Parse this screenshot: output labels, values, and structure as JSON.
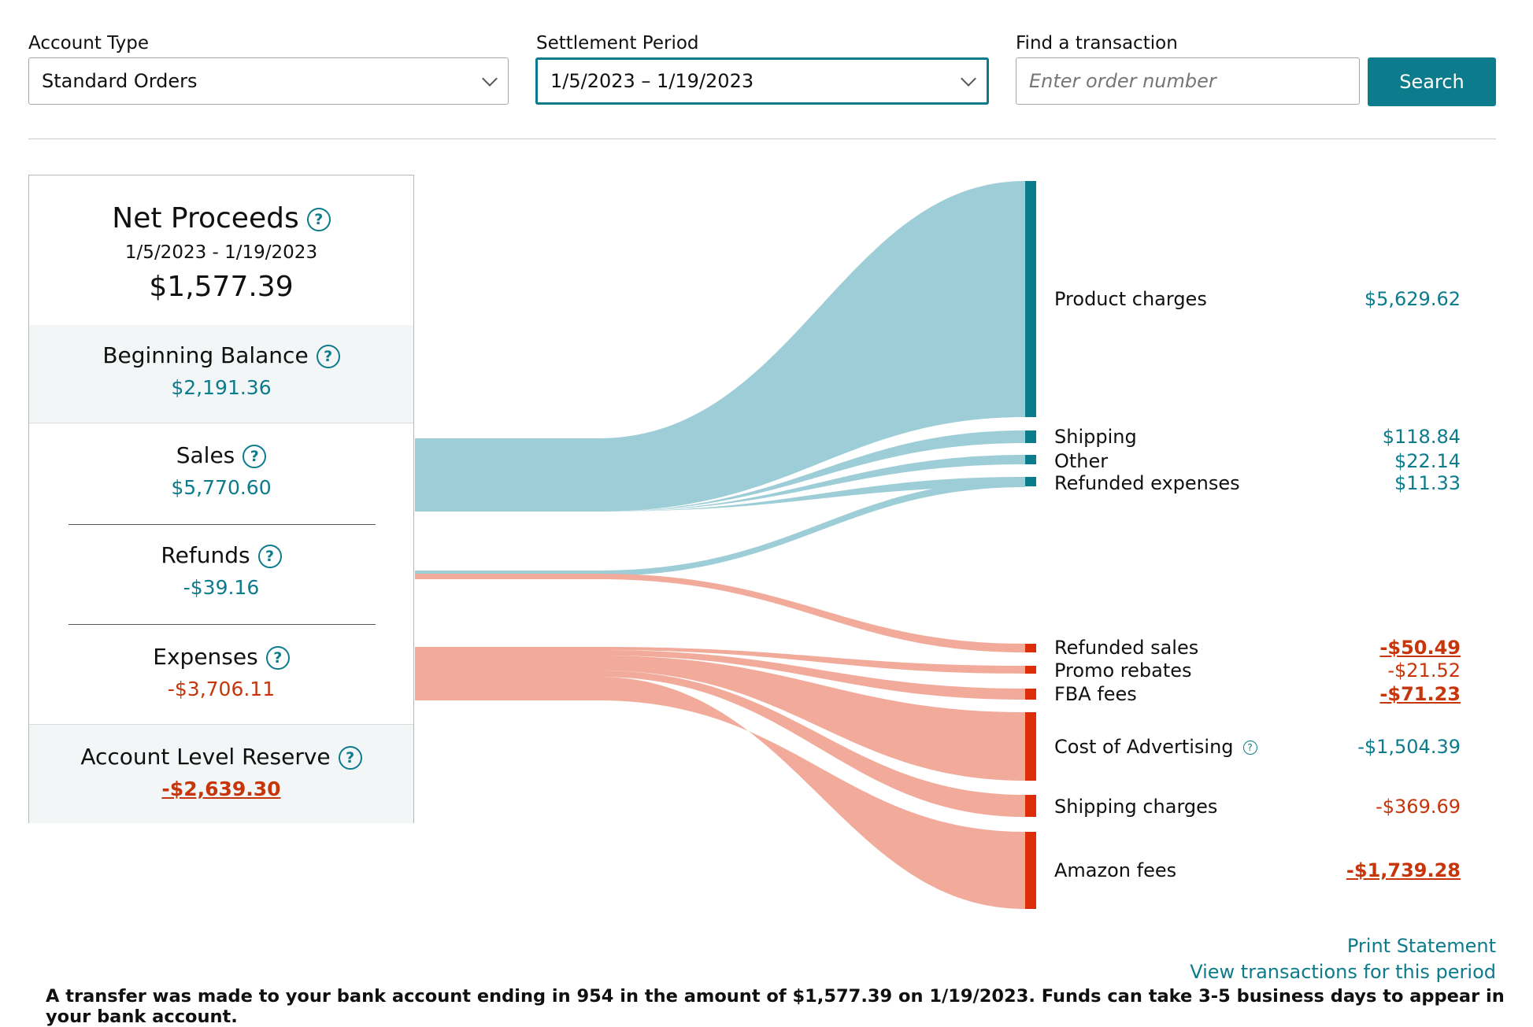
{
  "filters": {
    "account_type_label": "Account Type",
    "account_type_value": "Standard Orders",
    "settlement_period_label": "Settlement Period",
    "settlement_period_value": "1/5/2023 – 1/19/2023",
    "find_label": "Find a transaction",
    "find_placeholder": "Enter order number",
    "search_button": "Search"
  },
  "summary": {
    "title": "Net Proceeds",
    "period": "1/5/2023 - 1/19/2023",
    "net_amount": "$1,577.39",
    "beginning_balance_label": "Beginning Balance",
    "beginning_balance_value": "$2,191.36",
    "sales_label": "Sales",
    "sales_value": "$5,770.60",
    "refunds_label": "Refunds",
    "refunds_value": "-$39.16",
    "expenses_label": "Expenses",
    "expenses_value": "-$3,706.11",
    "reserve_label": "Account Level Reserve",
    "reserve_value": "-$2,639.30",
    "help_glyph": "?"
  },
  "breakdown": {
    "product_charges_label": "Product charges",
    "product_charges_value": "$5,629.62",
    "shipping_label": "Shipping",
    "shipping_value": "$118.84",
    "other_label": "Other",
    "other_value": "$22.14",
    "refunded_expenses_label": "Refunded expenses",
    "refunded_expenses_value": "$11.33",
    "refunded_sales_label": "Refunded sales",
    "refunded_sales_value": "-$50.49",
    "promo_rebates_label": "Promo rebates",
    "promo_rebates_value": "-$21.52",
    "fba_fees_label": "FBA fees",
    "fba_fees_value": "-$71.23",
    "cost_of_advertising_label": "Cost of Advertising",
    "cost_of_advertising_value": "-$1,504.39",
    "shipping_charges_label": "Shipping charges",
    "shipping_charges_value": "-$369.69",
    "amazon_fees_label": "Amazon fees",
    "amazon_fees_value": "-$1,739.28"
  },
  "colors": {
    "accent": "#0c7b8c",
    "positive_flow": "#9dcdd6",
    "negative_flow": "#f2aa9a",
    "negative_bar": "#dd2e0c",
    "negative_text": "#c7350a"
  },
  "links": {
    "print_statement": "Print Statement",
    "view_transactions": "View transactions for this period"
  },
  "notice": "A transfer was made to your bank account ending in 954 in the amount of $1,577.39 on 1/19/2023. Funds can take 3-5 business days to appear in your bank account."
}
